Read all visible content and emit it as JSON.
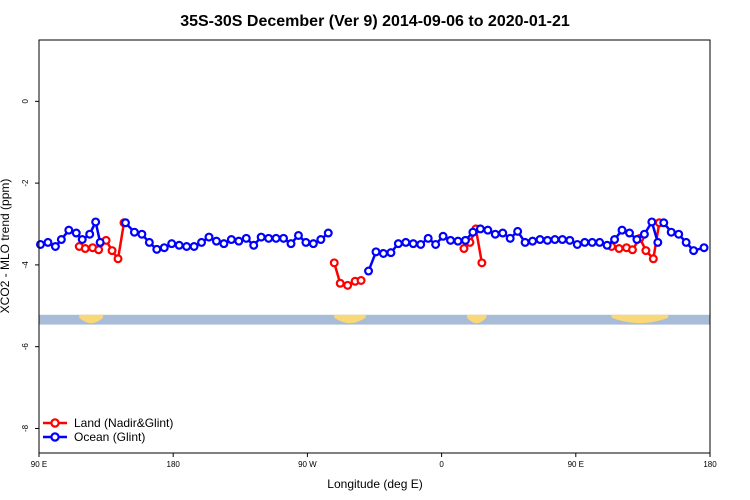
{
  "chart_data": {
    "type": "line",
    "title": "35S-30S December (Ver 9)   2014-09-06 to 2020-01-21",
    "xlabel": "Longitude (deg E)",
    "ylabel": "XCO2 - MLO trend (ppm)",
    "xlim": [
      90,
      540
    ],
    "ylim": [
      -8.6,
      1.5
    ],
    "x_ticks": [
      {
        "value": 90,
        "label": "90 E"
      },
      {
        "value": 180,
        "label": "180"
      },
      {
        "value": 270,
        "label": "90 W"
      },
      {
        "value": 360,
        "label": "0"
      },
      {
        "value": 450,
        "label": "90 E"
      },
      {
        "value": 540,
        "label": "180"
      }
    ],
    "y_ticks": [
      {
        "value": 0,
        "label": "0"
      },
      {
        "value": -2,
        "label": "-2"
      },
      {
        "value": -4,
        "label": "-4"
      },
      {
        "value": -6,
        "label": "-6"
      },
      {
        "value": -8,
        "label": "-8"
      }
    ],
    "legend_position": "bottom-left",
    "grid": false,
    "land_band": {
      "y_range": [
        -5.22,
        -5.46
      ],
      "ocean_color": "#a8bcd8",
      "land_color": "#f8d878",
      "land_segments": [
        [
          117,
          133
        ],
        [
          288,
          309
        ],
        [
          377,
          390
        ],
        [
          474,
          512
        ]
      ]
    },
    "series": [
      {
        "name": "Land (Nadir&Glint)",
        "color": "#ff0000",
        "segments": [
          [
            [
              117,
              -3.55
            ],
            [
              121,
              -3.6
            ],
            [
              126,
              -3.58
            ],
            [
              130,
              -3.63
            ],
            [
              135,
              -3.4
            ],
            [
              139,
              -3.65
            ],
            [
              143,
              -3.85
            ],
            [
              147,
              -2.97
            ]
          ],
          [
            [
              288,
              -3.95
            ],
            [
              292,
              -4.45
            ],
            [
              297,
              -4.5
            ],
            [
              302,
              -4.4
            ],
            [
              306,
              -4.38
            ]
          ],
          [
            [
              375,
              -3.6
            ],
            [
              379,
              -3.45
            ],
            [
              383,
              -3.12
            ],
            [
              387,
              -3.95
            ]
          ],
          [
            [
              474,
              -3.55
            ],
            [
              479,
              -3.6
            ],
            [
              484,
              -3.58
            ],
            [
              488,
              -3.63
            ],
            [
              493,
              -3.35
            ],
            [
              497,
              -3.65
            ],
            [
              502,
              -3.85
            ],
            [
              506,
              -2.97
            ]
          ]
        ]
      },
      {
        "name": "Ocean (Glint)",
        "color": "#0000ff",
        "segments": [
          [
            [
              91,
              -3.5
            ],
            [
              96,
              -3.45
            ],
            [
              101,
              -3.55
            ],
            [
              105,
              -3.38
            ],
            [
              110,
              -3.15
            ],
            [
              115,
              -3.22
            ],
            [
              119,
              -3.38
            ],
            [
              124,
              -3.25
            ],
            [
              128,
              -2.95
            ],
            [
              131,
              -3.45
            ]
          ],
          [
            [
              148,
              -2.97
            ],
            [
              154,
              -3.2
            ],
            [
              159,
              -3.25
            ],
            [
              164,
              -3.45
            ],
            [
              169,
              -3.62
            ],
            [
              174,
              -3.58
            ],
            [
              179,
              -3.48
            ],
            [
              184,
              -3.52
            ],
            [
              189,
              -3.55
            ],
            [
              194,
              -3.55
            ],
            [
              199,
              -3.45
            ],
            [
              204,
              -3.32
            ],
            [
              209,
              -3.42
            ],
            [
              214,
              -3.48
            ],
            [
              219,
              -3.38
            ],
            [
              224,
              -3.42
            ],
            [
              229,
              -3.35
            ],
            [
              234,
              -3.52
            ],
            [
              239,
              -3.32
            ],
            [
              244,
              -3.35
            ],
            [
              249,
              -3.35
            ],
            [
              254,
              -3.35
            ],
            [
              259,
              -3.48
            ],
            [
              264,
              -3.28
            ],
            [
              269,
              -3.45
            ],
            [
              274,
              -3.48
            ],
            [
              279,
              -3.38
            ],
            [
              284,
              -3.22
            ]
          ],
          [
            [
              311,
              -4.15
            ],
            [
              316,
              -3.68
            ],
            [
              321,
              -3.72
            ],
            [
              326,
              -3.7
            ],
            [
              331,
              -3.48
            ],
            [
              336,
              -3.45
            ],
            [
              341,
              -3.48
            ],
            [
              346,
              -3.5
            ],
            [
              351,
              -3.35
            ],
            [
              356,
              -3.5
            ],
            [
              361,
              -3.3
            ],
            [
              366,
              -3.4
            ],
            [
              371,
              -3.42
            ],
            [
              376,
              -3.4
            ],
            [
              381,
              -3.2
            ],
            [
              386,
              -3.12
            ],
            [
              391,
              -3.15
            ],
            [
              396,
              -3.25
            ],
            [
              401,
              -3.22
            ],
            [
              406,
              -3.35
            ],
            [
              411,
              -3.18
            ],
            [
              416,
              -3.45
            ],
            [
              421,
              -3.42
            ],
            [
              426,
              -3.38
            ],
            [
              431,
              -3.4
            ],
            [
              436,
              -3.38
            ],
            [
              441,
              -3.38
            ],
            [
              446,
              -3.4
            ],
            [
              451,
              -3.5
            ],
            [
              456,
              -3.45
            ],
            [
              461,
              -3.45
            ],
            [
              466,
              -3.45
            ],
            [
              471,
              -3.52
            ],
            [
              476,
              -3.38
            ],
            [
              481,
              -3.15
            ],
            [
              486,
              -3.22
            ],
            [
              491,
              -3.38
            ],
            [
              496,
              -3.25
            ],
            [
              501,
              -2.95
            ],
            [
              505,
              -3.45
            ]
          ],
          [
            [
              509,
              -2.97
            ],
            [
              514,
              -3.2
            ],
            [
              519,
              -3.25
            ],
            [
              524,
              -3.45
            ],
            [
              529,
              -3.65
            ],
            [
              536,
              -3.58
            ]
          ]
        ]
      }
    ]
  }
}
